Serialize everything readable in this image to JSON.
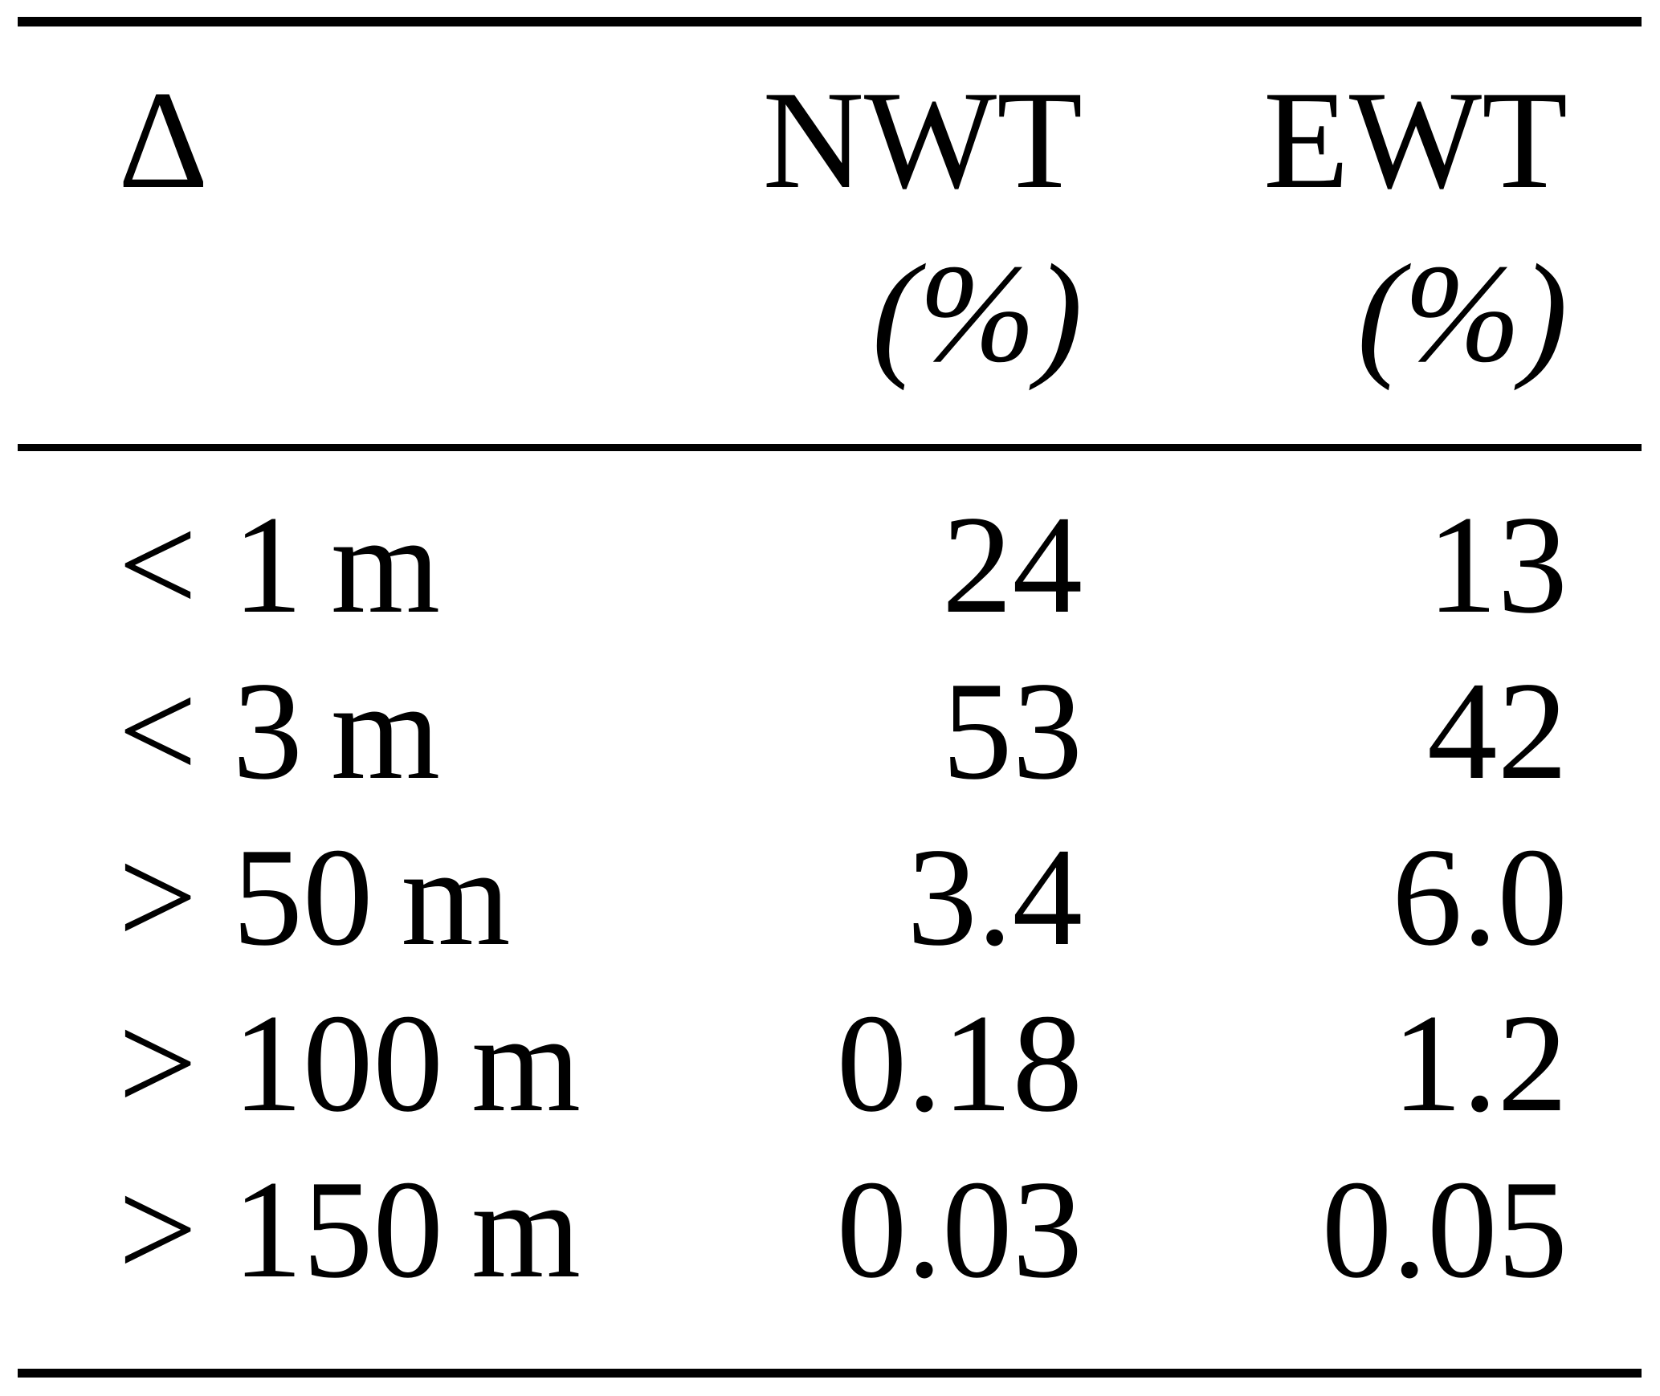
{
  "table": {
    "columns": [
      {
        "label": "Δ",
        "unit": ""
      },
      {
        "label": "NWT",
        "unit": "(%)"
      },
      {
        "label": "EWT",
        "unit": "(%)"
      }
    ],
    "rows": [
      {
        "delta": "< 1 m",
        "nwt": "24",
        "ewt": "13"
      },
      {
        "delta": "< 3 m",
        "nwt": "53",
        "ewt": "42"
      },
      {
        "delta": "> 50 m",
        "nwt": "3.4",
        "ewt": "6.0"
      },
      {
        "delta": "> 100 m",
        "nwt": "0.18",
        "ewt": "1.2"
      },
      {
        "delta": "> 150 m",
        "nwt": "0.03",
        "ewt": "0.05"
      }
    ]
  },
  "colors": {
    "background": "#ffffff",
    "text": "#000000",
    "rule": "#000000"
  },
  "chart_data": {
    "type": "table",
    "title": "",
    "columns": [
      "Δ",
      "NWT (%)",
      "EWT (%)"
    ],
    "rows": [
      [
        "< 1 m",
        24,
        13
      ],
      [
        "< 3 m",
        53,
        42
      ],
      [
        "> 50 m",
        3.4,
        6.0
      ],
      [
        "> 100 m",
        0.18,
        1.2
      ],
      [
        "> 150 m",
        0.03,
        0.05
      ]
    ]
  }
}
